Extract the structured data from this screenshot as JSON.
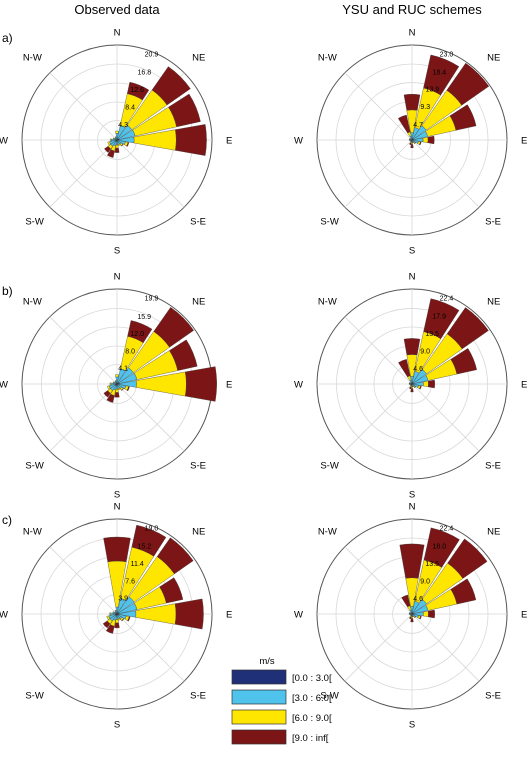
{
  "columns": [
    "Observed data",
    "YSU and RUC schemes"
  ],
  "panel_letters": [
    "a)",
    "b)",
    "c)"
  ],
  "directions": [
    "N",
    "NE",
    "E",
    "S-E",
    "S",
    "S-W",
    "W",
    "N-W"
  ],
  "legend": {
    "title": "m/s",
    "bins": [
      "[0.0 : 3.0[",
      "[3.0 : 6.0[",
      "[6.0 : 9.0[",
      "[9.0 : inf["
    ],
    "colors": [
      "#1f2f78",
      "#4fc3ec",
      "#ffe600",
      "#7c1616"
    ]
  },
  "chart_data": [
    {
      "type": "windrose",
      "row": 0,
      "column": 0,
      "rmax": 21.0,
      "rings": [
        4.3,
        8.4,
        12.6,
        16.8,
        20.9
      ],
      "sectors_deg": [
        0,
        22.5,
        45,
        67.5,
        90,
        112.5,
        135,
        157.5,
        180,
        202.5,
        225,
        247.5,
        270,
        292.5,
        315,
        337.5
      ],
      "bins": [
        [
          0.2,
          0.3,
          0.4,
          0.5,
          0.4,
          0.3,
          0.2,
          0.2,
          0.2,
          0.3,
          0.4,
          0.4,
          0.3,
          0.2,
          0.1,
          0.2
        ],
        [
          1.3,
          3.0,
          3.6,
          3.6,
          3.4,
          1.6,
          1.0,
          0.8,
          0.9,
          1.0,
          1.3,
          1.3,
          1.0,
          0.6,
          0.4,
          0.5
        ],
        [
          0.5,
          7.2,
          9.5,
          9.4,
          9.3,
          0.6,
          0.4,
          0.3,
          0.7,
          1.2,
          0.7,
          0.4,
          0.2,
          0.1,
          0.1,
          0.1
        ],
        [
          0,
          2.6,
          6.3,
          5.4,
          6.7,
          0.2,
          0.1,
          0,
          1.0,
          1.5,
          1.0,
          0,
          0,
          0,
          0,
          0
        ]
      ]
    },
    {
      "type": "windrose",
      "row": 0,
      "column": 1,
      "rmax": 23.0,
      "rings": [
        4.7,
        9.3,
        13.9,
        18.4,
        23.0
      ],
      "sectors_deg": [
        0,
        22.5,
        45,
        67.5,
        90,
        112.5,
        135,
        157.5,
        180,
        202.5,
        225,
        247.5,
        270,
        292.5,
        315,
        337.5
      ],
      "bins": [
        [
          0.2,
          0.3,
          0.4,
          0.4,
          0.3,
          0.2,
          0.1,
          0.1,
          0.1,
          0.1,
          0.1,
          0.1,
          0.2,
          0.2,
          0.1,
          0.2
        ],
        [
          1.6,
          2.8,
          3.8,
          3.5,
          2.4,
          1.4,
          0.7,
          0.5,
          0.5,
          0.4,
          0.3,
          0.3,
          0.4,
          0.4,
          0.3,
          0.8
        ],
        [
          5.5,
          9.8,
          10.5,
          7.0,
          1.2,
          0.5,
          0.2,
          0.1,
          0.5,
          0.3,
          0.1,
          0.1,
          0.1,
          0.1,
          0.1,
          1.0
        ],
        [
          3.8,
          8.2,
          8.0,
          5.0,
          1.5,
          0.2,
          0.1,
          0,
          0.8,
          0.4,
          0,
          0,
          0,
          0,
          0,
          4.2
        ]
      ]
    },
    {
      "type": "windrose",
      "row": 1,
      "column": 0,
      "rmax": 20.0,
      "rings": [
        4.1,
        8.0,
        12.0,
        15.9,
        19.9
      ],
      "sectors_deg": [
        0,
        22.5,
        45,
        67.5,
        90,
        112.5,
        135,
        157.5,
        180,
        202.5,
        225,
        247.5,
        270,
        292.5,
        315,
        337.5
      ],
      "bins": [
        [
          0.2,
          0.3,
          0.4,
          0.5,
          0.5,
          0.3,
          0.2,
          0.2,
          0.2,
          0.3,
          0.4,
          0.4,
          0.3,
          0.2,
          0.1,
          0.2
        ],
        [
          1.3,
          3.0,
          3.8,
          3.8,
          3.6,
          1.6,
          1.0,
          0.8,
          0.9,
          1.0,
          1.3,
          1.3,
          1.0,
          0.6,
          0.4,
          0.5
        ],
        [
          0.5,
          7.0,
          9.3,
          8.8,
          10.5,
          0.6,
          0.4,
          0.3,
          0.7,
          1.2,
          0.7,
          0.4,
          0.2,
          0.1,
          0.1,
          0.1
        ],
        [
          0,
          3.4,
          6.2,
          4.2,
          6.4,
          0.2,
          0.1,
          0,
          1.0,
          1.5,
          1.0,
          0,
          0,
          0,
          0,
          0
        ]
      ]
    },
    {
      "type": "windrose",
      "row": 1,
      "column": 1,
      "rmax": 22.5,
      "rings": [
        4.6,
        9.0,
        13.5,
        17.9,
        22.4
      ],
      "sectors_deg": [
        0,
        22.5,
        45,
        67.5,
        90,
        112.5,
        135,
        157.5,
        180,
        202.5,
        225,
        247.5,
        270,
        292.5,
        315,
        337.5
      ],
      "bins": [
        [
          0.2,
          0.3,
          0.4,
          0.4,
          0.3,
          0.2,
          0.1,
          0.1,
          0.1,
          0.1,
          0.1,
          0.1,
          0.2,
          0.2,
          0.1,
          0.2
        ],
        [
          1.6,
          2.8,
          3.8,
          3.5,
          2.4,
          1.4,
          0.7,
          0.5,
          0.5,
          0.4,
          0.3,
          0.3,
          0.4,
          0.4,
          0.3,
          0.8
        ],
        [
          5.2,
          9.6,
          10.3,
          7.0,
          1.2,
          0.5,
          0.2,
          0.1,
          0.5,
          0.3,
          0.1,
          0.1,
          0.1,
          0.1,
          0.1,
          1.0
        ],
        [
          3.8,
          8.0,
          7.6,
          4.8,
          1.5,
          0.2,
          0.1,
          0,
          0.8,
          0.4,
          0,
          0,
          0,
          0,
          0,
          4.0
        ]
      ]
    },
    {
      "type": "windrose",
      "row": 2,
      "column": 0,
      "rmax": 19.0,
      "rings": [
        3.9,
        7.6,
        11.4,
        15.2,
        19.0
      ],
      "sectors_deg": [
        0,
        22.5,
        45,
        67.5,
        90,
        112.5,
        135,
        157.5,
        180,
        202.5,
        225,
        247.5,
        270,
        292.5,
        315,
        337.5
      ],
      "bins": [
        [
          0.2,
          0.3,
          0.4,
          0.4,
          0.4,
          0.3,
          0.2,
          0.2,
          0.2,
          0.3,
          0.4,
          0.4,
          0.3,
          0.2,
          0.1,
          0.2
        ],
        [
          1.2,
          2.9,
          3.8,
          3.7,
          3.4,
          1.6,
          1.0,
          0.8,
          0.9,
          1.0,
          1.3,
          1.3,
          1.0,
          0.6,
          0.4,
          0.5
        ],
        [
          9.2,
          10.5,
          9.8,
          6.0,
          8.0,
          0.6,
          0.4,
          0.3,
          0.7,
          1.2,
          0.7,
          0.4,
          0.2,
          0.1,
          0.1,
          0.1
        ],
        [
          4.8,
          4.5,
          4.6,
          3.4,
          5.5,
          0.2,
          0.1,
          0,
          1.0,
          1.5,
          1.0,
          0,
          0,
          0,
          0,
          0
        ]
      ]
    },
    {
      "type": "windrose",
      "row": 2,
      "column": 1,
      "rmax": 22.5,
      "rings": [
        4.6,
        9.0,
        13.5,
        18.0,
        22.4
      ],
      "sectors_deg": [
        0,
        22.5,
        45,
        67.5,
        90,
        112.5,
        135,
        157.5,
        180,
        202.5,
        225,
        247.5,
        270,
        292.5,
        315,
        337.5
      ],
      "bins": [
        [
          0.2,
          0.3,
          0.4,
          0.4,
          0.3,
          0.2,
          0.1,
          0.1,
          0.1,
          0.1,
          0.1,
          0.1,
          0.2,
          0.2,
          0.1,
          0.2
        ],
        [
          1.6,
          2.8,
          3.8,
          3.5,
          2.4,
          1.4,
          0.7,
          0.5,
          0.5,
          0.4,
          0.3,
          0.3,
          0.4,
          0.4,
          0.3,
          0.8
        ],
        [
          6.8,
          10.0,
          10.5,
          7.0,
          1.2,
          0.5,
          0.2,
          0.1,
          0.5,
          0.3,
          0.1,
          0.1,
          0.1,
          0.1,
          0.1,
          1.0
        ],
        [
          8.0,
          7.8,
          7.0,
          4.6,
          1.5,
          0.2,
          0.1,
          0,
          0.8,
          0.4,
          0,
          0,
          0,
          0,
          0,
          2.6
        ]
      ]
    }
  ]
}
